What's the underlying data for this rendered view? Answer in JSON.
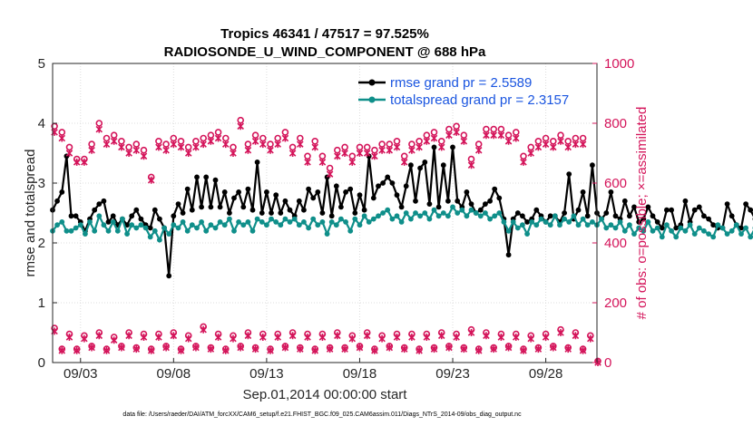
{
  "chart_data": {
    "type": "line",
    "title_line1": "Tropics 46341 / 47517 = 97.525%",
    "title_line2": "RADIOSONDE_U_WIND_COMPONENT @ 688 hPa",
    "xlabel": "Sep.01,2014 00:00:00 start",
    "ylabel_left": "rmse and totalspread",
    "ylabel_right": "# of obs: o=possible; ×=assimilated",
    "xlim": [
      1.5,
      30.75
    ],
    "ylim_left": [
      0,
      5
    ],
    "ylim_right": [
      0,
      1000
    ],
    "x_ticks": [
      {
        "x": 3,
        "label": "09/03"
      },
      {
        "x": 8,
        "label": "09/08"
      },
      {
        "x": 13,
        "label": "09/13"
      },
      {
        "x": 18,
        "label": "09/18"
      },
      {
        "x": 23,
        "label": "09/23"
      },
      {
        "x": 28,
        "label": "09/28"
      }
    ],
    "y_ticks_left": [
      "0",
      "1",
      "2",
      "3",
      "4",
      "5"
    ],
    "y_ticks_right": [
      "0",
      "200",
      "400",
      "600",
      "800",
      "1000"
    ],
    "x_start": 1.5,
    "x_step": 0.25,
    "legend": [
      {
        "name": "rmse grand pr = 2.5589",
        "color": "#000000"
      },
      {
        "name": "totalspread grand pr = 2.3157",
        "color": "#0f8f8a"
      }
    ],
    "series": [
      {
        "name": "rmse",
        "color": "#000000",
        "values": [
          2.55,
          2.7,
          2.85,
          3.45,
          2.45,
          2.45,
          2.35,
          2.2,
          2.4,
          2.55,
          2.65,
          2.7,
          2.35,
          2.45,
          2.3,
          2.4,
          2.3,
          2.45,
          2.55,
          2.4,
          2.3,
          2.25,
          2.55,
          2.4,
          2.25,
          1.45,
          2.45,
          2.65,
          2.5,
          2.9,
          2.55,
          3.1,
          2.6,
          3.1,
          2.6,
          3.05,
          2.6,
          2.85,
          2.5,
          2.75,
          2.85,
          2.6,
          2.9,
          2.55,
          3.35,
          2.5,
          2.85,
          2.5,
          2.8,
          2.5,
          2.7,
          2.55,
          2.45,
          2.7,
          2.55,
          2.9,
          2.75,
          2.85,
          2.5,
          3.1,
          2.45,
          2.95,
          2.6,
          2.85,
          2.9,
          2.5,
          2.8,
          2.55,
          3.45,
          2.75,
          2.95,
          3.0,
          3.1,
          3.0,
          2.8,
          2.6,
          2.95,
          3.3,
          2.7,
          3.25,
          3.35,
          2.65,
          3.6,
          2.6,
          3.3,
          2.7,
          3.6,
          2.7,
          2.6,
          2.85,
          2.65,
          2.5,
          2.55,
          2.65,
          2.7,
          2.9,
          2.75,
          2.4,
          1.8,
          2.4,
          2.5,
          2.45,
          2.35,
          2.4,
          2.55,
          2.45,
          2.35,
          2.45,
          2.45,
          2.35,
          2.5,
          3.15,
          2.4,
          2.55,
          2.85,
          2.45,
          3.3,
          2.5,
          2.4,
          2.5,
          2.85,
          2.45,
          2.4,
          2.7,
          2.45,
          2.6,
          2.35,
          2.4,
          2.6,
          2.45,
          2.35,
          2.25,
          2.55,
          2.55,
          2.25,
          2.3,
          2.7,
          2.35,
          2.55,
          2.6,
          2.45,
          2.4,
          2.3,
          2.25,
          2.25,
          2.65,
          2.45,
          2.3,
          2.25,
          2.65,
          2.55,
          2.4,
          2.65,
          2.35,
          2.25
        ]
      },
      {
        "name": "totalspread",
        "color": "#0f8f8a",
        "values": [
          2.2,
          2.3,
          2.35,
          2.2,
          2.2,
          2.25,
          2.3,
          2.15,
          2.35,
          2.2,
          2.45,
          2.3,
          2.2,
          2.35,
          2.2,
          2.4,
          2.15,
          2.3,
          2.25,
          2.3,
          2.25,
          2.1,
          2.2,
          2.05,
          2.25,
          2.15,
          2.3,
          2.25,
          2.35,
          2.2,
          2.3,
          2.25,
          2.35,
          2.2,
          2.3,
          2.25,
          2.35,
          2.3,
          2.4,
          2.2,
          2.35,
          2.3,
          2.35,
          2.2,
          2.4,
          2.35,
          2.3,
          2.4,
          2.35,
          2.3,
          2.4,
          2.35,
          2.4,
          2.3,
          2.35,
          2.25,
          2.4,
          2.3,
          2.35,
          2.15,
          2.35,
          2.3,
          2.4,
          2.35,
          2.2,
          2.4,
          2.3,
          2.45,
          2.35,
          2.4,
          2.45,
          2.5,
          2.55,
          2.4,
          2.45,
          2.35,
          2.5,
          2.4,
          2.5,
          2.45,
          2.5,
          2.4,
          2.55,
          2.45,
          2.5,
          2.45,
          2.6,
          2.5,
          2.55,
          2.45,
          2.55,
          2.5,
          2.45,
          2.5,
          2.4,
          2.45,
          2.5,
          2.35,
          2.2,
          2.35,
          2.25,
          2.3,
          2.15,
          2.35,
          2.3,
          2.4,
          2.35,
          2.3,
          2.45,
          2.3,
          2.4,
          2.35,
          2.45,
          2.3,
          2.4,
          2.3,
          2.35,
          2.3,
          2.4,
          2.25,
          2.3,
          2.25,
          2.35,
          2.2,
          2.3,
          2.15,
          2.25,
          2.2,
          2.35,
          2.2,
          2.25,
          2.1,
          2.3,
          2.2,
          2.1,
          2.25,
          2.2,
          2.3,
          2.15,
          2.25,
          2.2,
          2.15,
          2.1,
          2.3,
          2.25,
          2.15,
          2.2,
          2.3,
          2.15,
          2.25,
          2.1,
          2.25,
          2.2
        ]
      },
      {
        "name": "obs_possible_high",
        "color": "#d4145a",
        "marker": "circle",
        "values": [
          790,
          770,
          720,
          680,
          680,
          730,
          800,
          750,
          760,
          740,
          720,
          730,
          710,
          620,
          740,
          730,
          750,
          740,
          720,
          740,
          750,
          760,
          770,
          750,
          720,
          810,
          730,
          760,
          750,
          730,
          750,
          770,
          720,
          750,
          690,
          740,
          690,
          650,
          710,
          720,
          690,
          720,
          720,
          710,
          730,
          730,
          740,
          690,
          730,
          740,
          760,
          770,
          740,
          780,
          790,
          760,
          680,
          730,
          780,
          780,
          780,
          760,
          770,
          690,
          720,
          740,
          750,
          740,
          760,
          740,
          750,
          750
        ]
      },
      {
        "name": "obs_assimilated_high",
        "color": "#d4145a",
        "marker": "x",
        "values": [
          770,
          750,
          700,
          670,
          670,
          710,
          780,
          730,
          740,
          720,
          700,
          710,
          690,
          610,
          720,
          710,
          730,
          720,
          700,
          720,
          730,
          740,
          750,
          730,
          700,
          790,
          710,
          740,
          730,
          710,
          730,
          750,
          700,
          730,
          670,
          720,
          670,
          630,
          690,
          700,
          670,
          700,
          700,
          690,
          710,
          710,
          720,
          670,
          710,
          720,
          740,
          750,
          720,
          760,
          770,
          740,
          660,
          710,
          760,
          760,
          760,
          740,
          750,
          670,
          700,
          720,
          730,
          720,
          740,
          720,
          730,
          730
        ]
      },
      {
        "name": "obs_possible_low",
        "color": "#d4145a",
        "marker": "circle",
        "values": [
          115,
          45,
          95,
          45,
          90,
          55,
          100,
          45,
          85,
          55,
          100,
          50,
          95,
          45,
          95,
          55,
          100,
          45,
          90,
          55,
          120,
          50,
          95,
          45,
          90,
          55,
          100,
          50,
          95,
          45,
          95,
          55,
          100,
          50,
          95,
          45,
          95,
          50,
          100,
          50,
          90,
          55,
          100,
          45,
          90,
          55,
          95,
          50,
          95,
          45,
          95,
          50,
          100,
          55,
          95,
          50,
          110,
          45,
          100,
          50,
          95,
          55,
          95,
          45,
          90,
          50,
          95,
          55,
          110,
          50,
          100,
          45,
          90,
          5
        ]
      },
      {
        "name": "obs_assimilated_low",
        "color": "#d4145a",
        "marker": "x",
        "values": [
          105,
          40,
          85,
          40,
          80,
          50,
          90,
          40,
          75,
          50,
          90,
          45,
          85,
          40,
          85,
          50,
          90,
          40,
          80,
          50,
          110,
          45,
          85,
          40,
          80,
          50,
          90,
          45,
          85,
          40,
          85,
          50,
          90,
          45,
          85,
          40,
          85,
          45,
          90,
          45,
          80,
          50,
          90,
          40,
          80,
          50,
          85,
          45,
          85,
          40,
          85,
          45,
          90,
          50,
          85,
          45,
          100,
          40,
          90,
          45,
          85,
          50,
          85,
          40,
          80,
          45,
          85,
          50,
          100,
          45,
          90,
          40,
          80,
          0
        ]
      }
    ],
    "obs_x_start": 1.6,
    "obs_x_step": 0.4
  },
  "footnote": "data file: /Users/raeder/DAI/ATM_forcXX/CAM6_setup/f.e21.FHIST_BGC.f09_025.CAM6assim.011/Diags_NTrS_2014-09/obs_diag_output.nc"
}
